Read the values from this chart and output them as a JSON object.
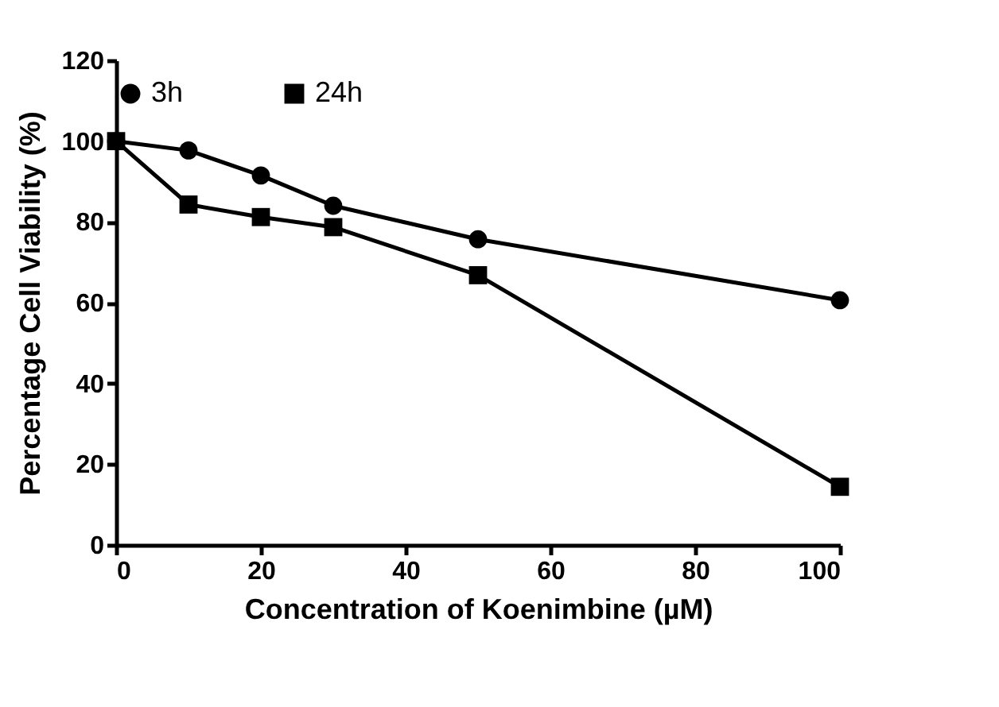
{
  "chart_data": {
    "type": "line",
    "xlabel": "Concentration of Koenimbine (µM)",
    "ylabel": "Percentage Cell Viability (%)",
    "x": [
      0,
      10,
      20,
      30,
      50,
      100
    ],
    "series": [
      {
        "name": "3h",
        "color": "#000000",
        "marker": "circle",
        "values": [
          100,
          97.7,
          91.5,
          84,
          75.7,
          60.6
        ]
      },
      {
        "name": "24h",
        "color": "#000000",
        "marker": "square",
        "values": [
          100,
          84.3,
          81.2,
          78.7,
          66.8,
          14.4
        ]
      }
    ],
    "xlim": [
      0,
      100
    ],
    "xticks": [
      0,
      20,
      40,
      60,
      80,
      100
    ],
    "ylim": [
      0,
      120
    ],
    "yticks": [
      0,
      20,
      40,
      60,
      80,
      100,
      120
    ],
    "grid": false,
    "legend": "top",
    "line_style": "solid"
  }
}
